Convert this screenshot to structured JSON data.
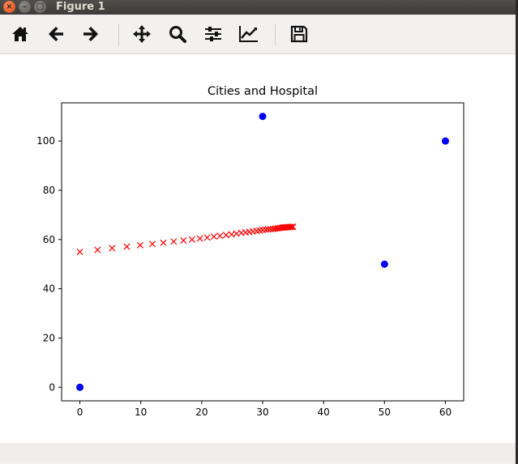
{
  "window": {
    "title": "Figure 1"
  },
  "controls": {
    "close": "×",
    "minimize": "–",
    "maximize": "□"
  },
  "toolbar": {
    "buttons": [
      "home-icon",
      "back-arrow-icon",
      "forward-arrow-icon",
      "pan-move-icon",
      "zoom-magnifier-icon",
      "configure-subplots-icon",
      "edit-axis-curves-icon",
      "save-floppy-icon"
    ]
  },
  "colors": {
    "cities": "#0000ff",
    "hospital": "#ff0000",
    "axes": "#000000"
  },
  "chart_data": {
    "type": "scatter",
    "title": "Cities and Hospital",
    "xlabel": "",
    "ylabel": "",
    "xlim": [
      -3,
      63
    ],
    "ylim": [
      -5.5,
      115.5
    ],
    "xticks": [
      0,
      10,
      20,
      30,
      40,
      50,
      60
    ],
    "yticks": [
      0,
      20,
      40,
      60,
      80,
      100
    ],
    "grid": false,
    "series": [
      {
        "name": "cities",
        "marker": "circle",
        "x": [
          0,
          30,
          50,
          60
        ],
        "y": [
          0,
          110,
          50,
          100
        ]
      },
      {
        "name": "hospital",
        "marker": "x",
        "x": [
          0,
          2.9,
          5.3,
          7.7,
          9.9,
          11.9,
          13.7,
          15.4,
          17.0,
          18.4,
          19.7,
          20.9,
          22.0,
          23.0,
          24.0,
          24.9,
          25.7,
          26.5,
          27.2,
          27.8,
          28.4,
          29.0,
          29.5,
          30.0,
          30.5,
          30.9,
          31.3,
          31.7,
          32.0,
          32.3,
          32.6,
          32.9,
          33.2,
          33.4,
          33.6,
          33.8,
          34.0,
          34.2,
          34.4,
          34.6,
          34.8,
          35.0
        ],
        "y": [
          55.0,
          55.8,
          56.5,
          57.1,
          57.7,
          58.2,
          58.7,
          59.2,
          59.6,
          60.0,
          60.4,
          60.8,
          61.2,
          61.5,
          61.8,
          62.1,
          62.4,
          62.7,
          62.9,
          63.1,
          63.3,
          63.5,
          63.7,
          63.9,
          64.0,
          64.1,
          64.2,
          64.3,
          64.4,
          64.5,
          64.6,
          64.7,
          64.8,
          64.9,
          64.9,
          65.0,
          65.0,
          65.0,
          65.1,
          65.1,
          65.1,
          65.2
        ]
      }
    ]
  }
}
